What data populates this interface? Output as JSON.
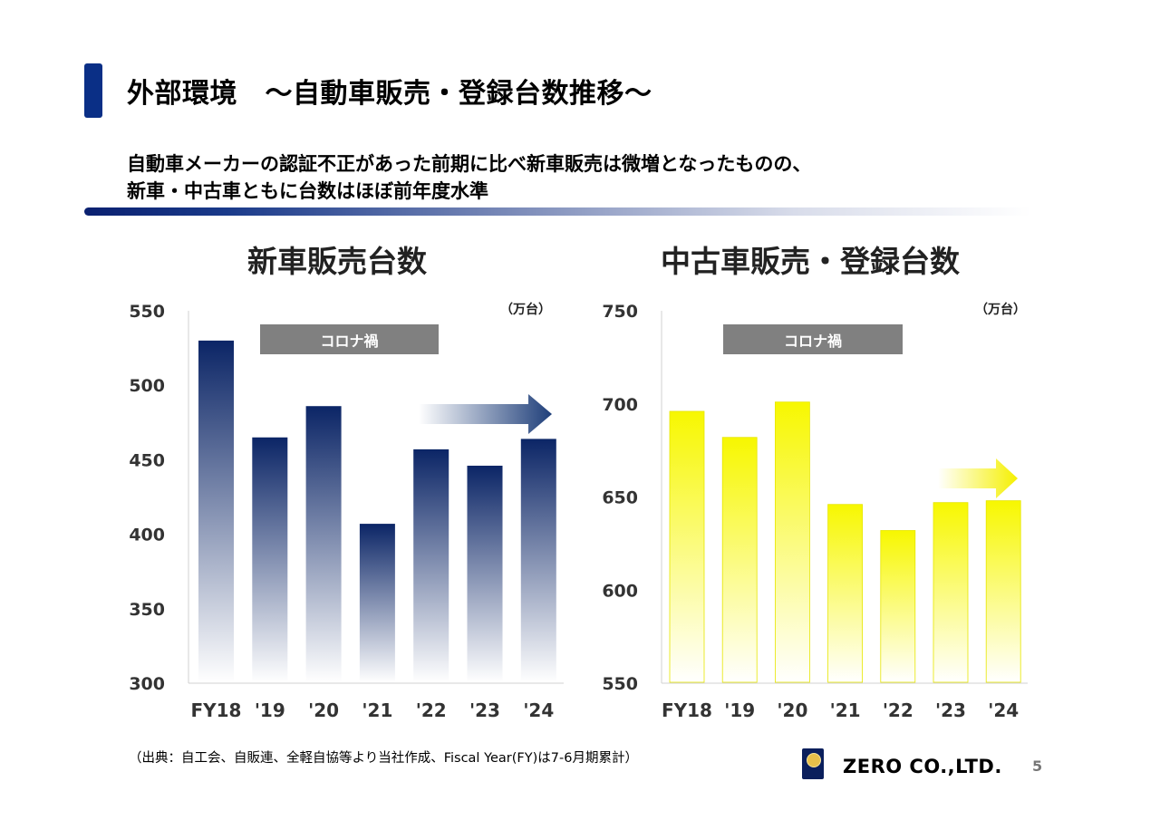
{
  "header": {
    "title": "外部環境　～自動車販売・登録台数推移～",
    "subtitle_line1": "自動車メーカーの認証不正があった前期に比べ新車販売は微増となったものの、",
    "subtitle_line2": "新車・中古車ともに台数はほぼ前年度水準"
  },
  "chart_data": [
    {
      "type": "bar",
      "title": "新車販売台数",
      "unit": "（万台）",
      "categories": [
        "FY18",
        "'19",
        "'20",
        "'21",
        "'22",
        "'23",
        "'24"
      ],
      "values": [
        530,
        465,
        486,
        407,
        457,
        446,
        464
      ],
      "ylim": [
        300,
        550
      ],
      "yticks": [
        550,
        500,
        450,
        400,
        350,
        300
      ],
      "annotation": "コロナ禍",
      "bar_color_top": "#0b2566",
      "bar_color_bottom": "#ffffff",
      "trend_arrow_color": "#1f3f7a"
    },
    {
      "type": "bar",
      "title": "中古車販売・登録台数",
      "unit": "（万台）",
      "categories": [
        "FY18",
        "'19",
        "'20",
        "'21",
        "'22",
        "'23",
        "'24"
      ],
      "values": [
        696,
        682,
        701,
        646,
        632,
        647,
        648
      ],
      "ylim": [
        550,
        750
      ],
      "yticks": [
        750,
        700,
        650,
        600,
        550
      ],
      "annotation": "コロナ禍",
      "bar_color_top": "#f7f700",
      "bar_color_bottom": "#ffffff",
      "trend_arrow_color": "#f5f000"
    }
  ],
  "footer": {
    "source": "（出典：自工会、自販連、全軽自協等より当社作成、Fiscal Year(FY)は7-6月期累計）",
    "company": "ZERO CO.,LTD.",
    "page": "5"
  },
  "colors": {
    "accent": "#0a2f86",
    "banner": "#808080"
  }
}
